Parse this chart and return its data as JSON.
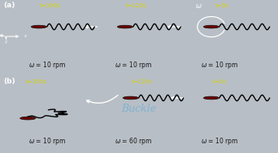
{
  "bg_ocean": "#1b4f72",
  "bg_ocean_2": "#1a4a6b",
  "bg_label": "#b8bec5",
  "text_yellow": "#d4d400",
  "text_white": "#ffffff",
  "text_dark": "#1a1a1a",
  "ball_color": "#6b0000",
  "wave_color": "#000000",
  "buckle_text_color": "#7fb3d3",
  "title_a": "(a)",
  "title_b": "(b)",
  "time_a": [
    "t=300s",
    "t=120s",
    "t=0s"
  ],
  "time_b": [
    "t=300s",
    "t=120s",
    "t=0s"
  ],
  "omega_a": [
    "ω =10 rpm",
    "ω =10 rpm",
    "ω =10 rpm"
  ],
  "omega_b": [
    "ω =10 rpm",
    "ω =60 rpm",
    "ω =10 rpm"
  ],
  "buckle_text": "Buckle",
  "omega_sym": "ω",
  "fig_w": 3.42,
  "fig_h": 1.89,
  "dpi": 100
}
